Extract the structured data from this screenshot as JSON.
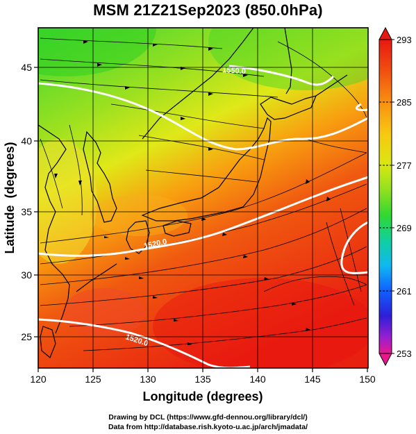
{
  "title": "MSM 21Z21Sep2023 (850.0hPa)",
  "map": {
    "lon_range": [
      120,
      150
    ],
    "lat_range": [
      22.5,
      48
    ],
    "x_ticks": [
      "120",
      "125",
      "130",
      "135",
      "140",
      "145",
      "150"
    ],
    "y_ticks": [
      "25",
      "30",
      "35",
      "40",
      "45"
    ],
    "x_label": "Longitude (degrees)",
    "y_label": "Latitude  (degrees)",
    "contour_labels": [
      "1520.0",
      "1520.0",
      "1550.0"
    ]
  },
  "colorbar": {
    "labels": [
      "293",
      "285",
      "277",
      "269",
      "261",
      "253"
    ],
    "range": [
      253,
      293
    ],
    "colors": [
      "#e8188c",
      "#9a1fd0",
      "#2d1fd8",
      "#1060ff",
      "#10b8f0",
      "#10d0a0",
      "#30d830",
      "#90e020",
      "#d8e810",
      "#f8c810",
      "#f89010",
      "#f05010",
      "#e81810"
    ]
  },
  "credits": {
    "line1": "Drawing by DCL (https://www.gfd-dennou.org/library/dcl/)",
    "line2": "Data from http://database.rish.kyoto-u.ac.jp/arch/jmadata/"
  }
}
